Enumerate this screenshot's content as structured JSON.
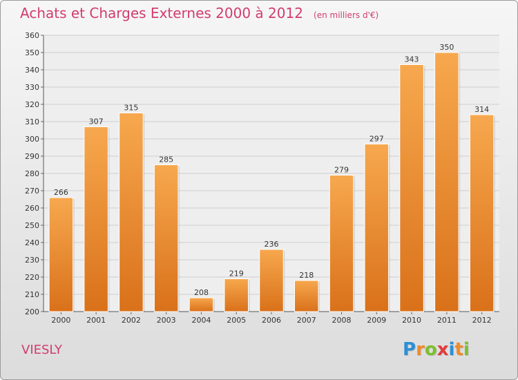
{
  "chart_data": {
    "type": "bar",
    "title": "Achats et Charges Externes 2000 à 2012",
    "unit": "(en milliers d'€)",
    "categories": [
      "2000",
      "2001",
      "2002",
      "2003",
      "2004",
      "2005",
      "2006",
      "2007",
      "2008",
      "2009",
      "2010",
      "2011",
      "2012"
    ],
    "values": [
      266,
      307,
      315,
      285,
      208,
      219,
      236,
      218,
      279,
      297,
      343,
      350,
      314
    ],
    "ylim": [
      200,
      360
    ],
    "yticks": [
      200,
      210,
      220,
      230,
      240,
      250,
      260,
      270,
      280,
      290,
      300,
      310,
      320,
      330,
      340,
      350,
      360
    ],
    "grid": true,
    "bar_color": "#f08a2a"
  },
  "commune": "VIESLY",
  "logo": {
    "text": "Proxiti",
    "letters": [
      {
        "ch": "P",
        "color": "#2b8fd6"
      },
      {
        "ch": "r",
        "color": "#f08a2a"
      },
      {
        "ch": "o",
        "color": "#7cbf2f"
      },
      {
        "ch": "x",
        "color": "#e23c3c"
      },
      {
        "ch": "i",
        "color": "#2b8fd6"
      },
      {
        "ch": "t",
        "color": "#f08a2a"
      },
      {
        "ch": "i",
        "color": "#7cbf2f"
      }
    ]
  }
}
